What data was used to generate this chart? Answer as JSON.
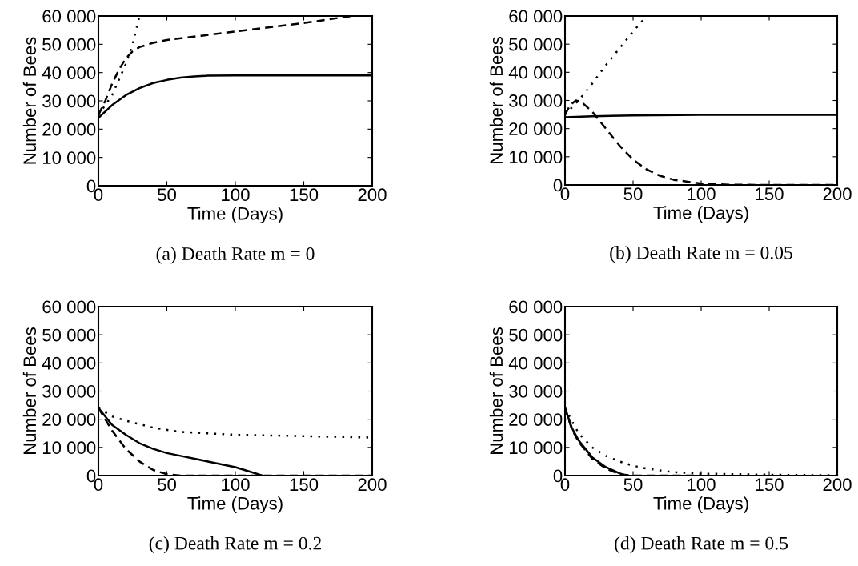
{
  "chart_data": [
    {
      "type": "line",
      "xlabel": "Time (Days)",
      "ylabel": "Number of Bees",
      "annotations": [
        "(a) Death Rate m = 0"
      ],
      "xlim": [
        0,
        200
      ],
      "xticks": [
        0,
        50,
        100,
        150,
        200
      ],
      "ylim": [
        0,
        60000
      ],
      "yticks": [
        0,
        {
          "value": 10000,
          "label": "10 000"
        },
        {
          "value": 20000,
          "label": "20 000"
        },
        {
          "value": 30000,
          "label": "30 000"
        },
        {
          "value": 40000,
          "label": "40 000"
        },
        {
          "value": 50000,
          "label": "50 000"
        },
        {
          "value": 60000,
          "label": "60 000"
        }
      ],
      "series": [
        {
          "color": "#000000",
          "line_style": "solid",
          "x": [
            0,
            10,
            20,
            30,
            40,
            50,
            60,
            70,
            80,
            100,
            150,
            200
          ],
          "values": [
            24000,
            28500,
            32000,
            34500,
            36300,
            37400,
            38200,
            38600,
            38900,
            39000,
            39000,
            39000
          ]
        },
        {
          "color": "#000000",
          "line_style": "dashed",
          "x": [
            0,
            5,
            10,
            15,
            20,
            25,
            30,
            40,
            50,
            75,
            100,
            150,
            185
          ],
          "values": [
            25000,
            30000,
            36000,
            41000,
            45000,
            47500,
            49000,
            50500,
            51500,
            53000,
            54500,
            57500,
            60000
          ]
        },
        {
          "color": "#000000",
          "line_style": "dotted",
          "x": [
            0,
            10,
            20,
            25,
            30
          ],
          "values": [
            25000,
            32000,
            43000,
            50000,
            60000
          ]
        }
      ]
    },
    {
      "type": "line",
      "xlabel": "Time (Days)",
      "ylabel": "Number of Bees",
      "annotations": [
        "(b) Death Rate m = 0.05"
      ],
      "xlim": [
        0,
        200
      ],
      "xticks": [
        0,
        50,
        100,
        150,
        200
      ],
      "ylim": [
        0,
        60000
      ],
      "yticks": [
        0,
        {
          "value": 10000,
          "label": "10 000"
        },
        {
          "value": 20000,
          "label": "20 000"
        },
        {
          "value": 30000,
          "label": "30 000"
        },
        {
          "value": 40000,
          "label": "40 000"
        },
        {
          "value": 50000,
          "label": "50 000"
        },
        {
          "value": 60000,
          "label": "60 000"
        }
      ],
      "series": [
        {
          "color": "#000000",
          "line_style": "solid",
          "x": [
            0,
            20,
            50,
            100,
            200
          ],
          "values": [
            24000,
            24400,
            24700,
            24900,
            24900
          ]
        },
        {
          "color": "#000000",
          "line_style": "dashed",
          "x": [
            0,
            4,
            8,
            12,
            20,
            30,
            40,
            50,
            60,
            70,
            80,
            100,
            120,
            150,
            200
          ],
          "values": [
            25000,
            28500,
            30000,
            29500,
            26000,
            20000,
            14000,
            9000,
            5500,
            3200,
            1800,
            500,
            100,
            0,
            0
          ]
        },
        {
          "color": "#000000",
          "line_style": "dotted",
          "x": [
            0,
            10,
            20,
            30,
            40,
            50,
            60
          ],
          "values": [
            25000,
            30000,
            36000,
            42500,
            48500,
            54500,
            60000
          ]
        }
      ]
    },
    {
      "type": "line",
      "xlabel": "Time (Days)",
      "ylabel": "Number of Bees",
      "annotations": [
        "(c) Death Rate m = 0.2"
      ],
      "xlim": [
        0,
        200
      ],
      "xticks": [
        0,
        50,
        100,
        150,
        200
      ],
      "ylim": [
        0,
        60000
      ],
      "yticks": [
        0,
        {
          "value": 10000,
          "label": "10 000"
        },
        {
          "value": 20000,
          "label": "20 000"
        },
        {
          "value": 30000,
          "label": "30 000"
        },
        {
          "value": 40000,
          "label": "40 000"
        },
        {
          "value": 50000,
          "label": "50 000"
        },
        {
          "value": 60000,
          "label": "60 000"
        }
      ],
      "series": [
        {
          "color": "#000000",
          "line_style": "solid",
          "x": [
            0,
            10,
            20,
            30,
            40,
            50,
            60,
            80,
            100,
            110,
            120
          ],
          "values": [
            24000,
            18000,
            14500,
            11500,
            9500,
            8000,
            7000,
            5000,
            3000,
            1500,
            0
          ]
        },
        {
          "color": "#000000",
          "line_style": "dashed",
          "x": [
            0,
            10,
            20,
            30,
            40,
            50,
            60,
            200
          ],
          "values": [
            24000,
            16000,
            9500,
            5000,
            2000,
            500,
            0,
            0
          ]
        },
        {
          "color": "#000000",
          "line_style": "dotted",
          "x": [
            0,
            10,
            20,
            40,
            60,
            100,
            150,
            200
          ],
          "values": [
            24000,
            21000,
            19500,
            17000,
            15500,
            14500,
            14000,
            13500
          ]
        }
      ]
    },
    {
      "type": "line",
      "xlabel": "Time (Days)",
      "ylabel": "Number of Bees",
      "annotations": [
        "(d) Death Rate m = 0.5"
      ],
      "xlim": [
        0,
        200
      ],
      "xticks": [
        0,
        50,
        100,
        150,
        200
      ],
      "ylim": [
        0,
        60000
      ],
      "yticks": [
        0,
        {
          "value": 10000,
          "label": "10 000"
        },
        {
          "value": 20000,
          "label": "20 000"
        },
        {
          "value": 30000,
          "label": "30 000"
        },
        {
          "value": 40000,
          "label": "40 000"
        },
        {
          "value": 50000,
          "label": "50 000"
        },
        {
          "value": 60000,
          "label": "60 000"
        }
      ],
      "series": [
        {
          "color": "#000000",
          "line_style": "solid",
          "x": [
            0,
            5,
            10,
            20,
            30,
            40,
            45
          ],
          "values": [
            24000,
            17000,
            12500,
            6500,
            3000,
            800,
            0
          ]
        },
        {
          "color": "#000000",
          "line_style": "dashed",
          "x": [
            0,
            5,
            10,
            20,
            30,
            40,
            50,
            100
          ],
          "values": [
            24000,
            16500,
            12000,
            6000,
            2500,
            500,
            0,
            0
          ]
        },
        {
          "color": "#000000",
          "line_style": "dotted",
          "x": [
            0,
            10,
            20,
            30,
            40,
            50,
            60,
            80,
            100,
            150,
            200
          ],
          "values": [
            24000,
            15000,
            10000,
            7000,
            5000,
            3500,
            2500,
            1200,
            700,
            300,
            100
          ]
        }
      ]
    }
  ]
}
